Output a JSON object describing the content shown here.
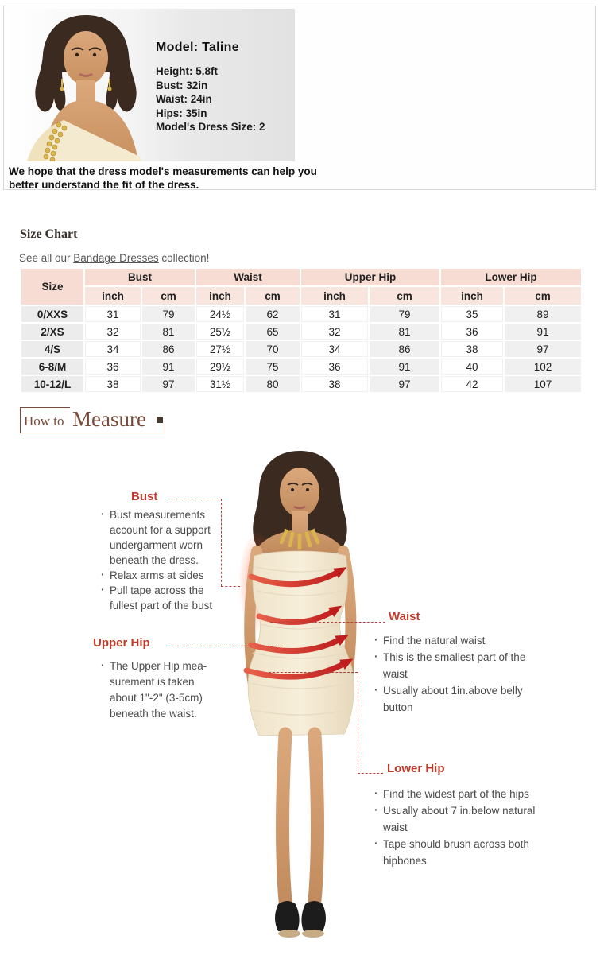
{
  "model_box": {
    "title": "Model: Taline",
    "stats": [
      "Height: 5.8ft",
      "Bust: 32in",
      "Waist: 24in",
      "Hips: 35in",
      "Model's Dress Size: 2"
    ],
    "caption": "We hope that the dress model's measurements can help you better understand the fit of the dress."
  },
  "size_chart": {
    "heading": "Size Chart",
    "intro_prefix": "See all our ",
    "link_text": "Bandage Dresses",
    "intro_suffix": " collection!",
    "size_header": "Size",
    "groups": [
      "Bust",
      "Waist",
      "Upper Hip",
      "Lower Hip"
    ],
    "unit_headers": [
      "inch",
      "cm"
    ],
    "rows": [
      {
        "size": "0/XXS",
        "values": [
          "31",
          "79",
          "24½",
          "62",
          "31",
          "79",
          "35",
          "89"
        ]
      },
      {
        "size": "2/XS",
        "values": [
          "32",
          "81",
          "25½",
          "65",
          "32",
          "81",
          "36",
          "91"
        ]
      },
      {
        "size": "4/S",
        "values": [
          "34",
          "86",
          "27½",
          "70",
          "34",
          "86",
          "38",
          "97"
        ]
      },
      {
        "size": "6-8/M",
        "values": [
          "36",
          "91",
          "29½",
          "75",
          "36",
          "91",
          "40",
          "102"
        ]
      },
      {
        "size": "10-12/L",
        "values": [
          "38",
          "97",
          "31½",
          "80",
          "38",
          "97",
          "42",
          "107"
        ]
      }
    ]
  },
  "how_to_measure": {
    "part1": "How to",
    "part2": "Measure"
  },
  "measure_guide": {
    "bust": {
      "label": "Bust",
      "tips": [
        "Bust measurements account for a support undergarment worn beneath the dress.",
        "Relax arms at sides",
        "Pull tape across the fullest part of the bust"
      ]
    },
    "upper_hip": {
      "label": "Upper Hip",
      "tips": [
        "The Upper Hip mea-surement is taken about 1\"-2\" (3-5cm) beneath the waist."
      ]
    },
    "waist": {
      "label": "Waist",
      "tips": [
        "Find the natural waist",
        "This is the smallest part of the waist",
        "Usually about 1in.above belly button"
      ]
    },
    "lower_hip": {
      "label": "Lower Hip",
      "tips": [
        "Find the widest part of the hips",
        "Usually about 7 in.below natural waist",
        "Tape should brush across both hipbones"
      ]
    }
  },
  "colors": {
    "accent_red": "#c0392b",
    "dashed_red": "#b2443f",
    "header_pink": "#f6dcd2",
    "header_pink_light": "#f8e6de",
    "heading_brown": "#7a4b39"
  }
}
